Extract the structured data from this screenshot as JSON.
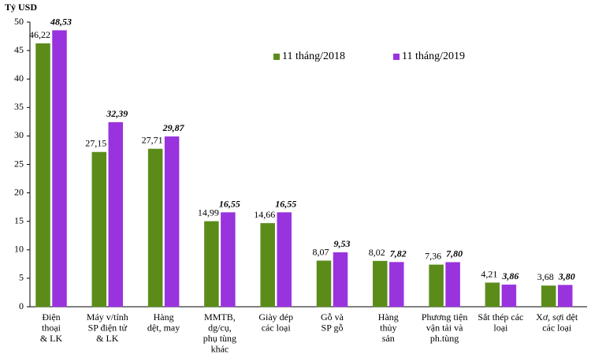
{
  "chart_data": {
    "type": "bar",
    "y_axis_label": "Tỷ USD",
    "categories": [
      [
        "Điện",
        "thoại",
        "& LK"
      ],
      [
        "Máy v/tính",
        "SP điện tử",
        "& LK"
      ],
      [
        "Hàng",
        "dệt, may"
      ],
      [
        "MMTB,",
        "dg/cụ,",
        "phụ tùng",
        "khác"
      ],
      [
        "Giày dép",
        "các loại"
      ],
      [
        "Gỗ và",
        "SP gỗ"
      ],
      [
        "Hàng",
        "thủy",
        "sản"
      ],
      [
        "Phương tiện",
        "vận tải và",
        "ph.tùng"
      ],
      [
        "Sắt thép các",
        "loại"
      ],
      [
        "Xơ, sợi dệt",
        "các loại"
      ]
    ],
    "series": [
      {
        "name": "11 tháng/2018",
        "color": "#5b8c1a",
        "values": [
          46.22,
          27.15,
          27.71,
          14.99,
          14.66,
          8.07,
          8.02,
          7.36,
          4.21,
          3.68
        ],
        "value_labels": [
          "46,22",
          "27,15",
          "27,71",
          "14,99",
          "14,66",
          "8,07",
          "8,02",
          "7,36",
          "4,21",
          "3,68"
        ]
      },
      {
        "name": "11 tháng/2019",
        "color": "#9933dd",
        "values": [
          48.53,
          32.39,
          29.87,
          16.55,
          16.55,
          9.53,
          7.82,
          7.8,
          3.86,
          3.8
        ],
        "value_labels": [
          "48,53",
          "32,39",
          "29,87",
          "16,55",
          "16,55",
          "9,53",
          "7,82",
          "7,80",
          "3,86",
          "3,80"
        ]
      }
    ],
    "ylim": [
      0,
      50
    ],
    "yticks": [
      0,
      5,
      10,
      15,
      20,
      25,
      30,
      35,
      40,
      45,
      50
    ],
    "grid": false
  }
}
